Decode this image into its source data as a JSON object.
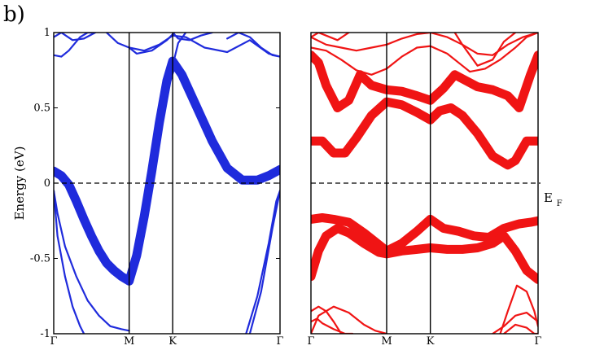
{
  "figure": {
    "panel_label": "b)",
    "fermi_label": {
      "main": "E",
      "sub": "F"
    }
  },
  "chart_data": [
    {
      "type": "line",
      "panel": "left",
      "title": "",
      "ylabel": "Energy (eV)",
      "xlabel": "",
      "k_points": [
        {
          "label": "Γ",
          "x": 0
        },
        {
          "label": "M",
          "x": 1
        },
        {
          "label": "K",
          "x": 1.577
        },
        {
          "label": "Γ",
          "x": 3.0
        }
      ],
      "ylim": [
        -1,
        1
      ],
      "yticks": [
        {
          "value": 1,
          "label": "1"
        },
        {
          "value": 0.5,
          "label": "0.5"
        },
        {
          "value": 0,
          "label": "0"
        },
        {
          "value": -0.5,
          "label": "-0.5"
        },
        {
          "value": -1,
          "label": "-1"
        }
      ],
      "fermi_level": 0,
      "color": "#1f2bdc",
      "series": [
        {
          "weight": "thick",
          "x": [
            0,
            0.1,
            0.2,
            0.3,
            0.4,
            0.5,
            0.6,
            0.7,
            0.8,
            0.9,
            1.0,
            1.1,
            1.2,
            1.3,
            1.4,
            1.5,
            1.577,
            1.7,
            1.9,
            2.1,
            2.3,
            2.5,
            2.7,
            2.85,
            3.0
          ],
          "y": [
            0.08,
            0.05,
            -0.01,
            -0.12,
            -0.24,
            -0.35,
            -0.45,
            -0.53,
            -0.58,
            -0.62,
            -0.65,
            -0.48,
            -0.22,
            0.08,
            0.4,
            0.68,
            0.81,
            0.72,
            0.5,
            0.28,
            0.1,
            0.02,
            0.02,
            0.05,
            0.09
          ]
        },
        {
          "weight": "thin",
          "x": [
            0,
            0.05,
            0.15,
            0.3,
            0.45,
            0.6,
            0.75,
            0.9,
            1.0
          ],
          "y": [
            -0.05,
            -0.2,
            -0.42,
            -0.62,
            -0.78,
            -0.88,
            -0.95,
            -0.97,
            -0.98
          ]
        },
        {
          "weight": "thin",
          "x": [
            0,
            0.05,
            0.15,
            0.25,
            0.35,
            0.4
          ],
          "y": [
            -0.05,
            -0.35,
            -0.62,
            -0.82,
            -0.95,
            -1.0
          ]
        },
        {
          "weight": "thin",
          "x": [
            2.55,
            2.7,
            2.85,
            2.95,
            3.0
          ],
          "y": [
            -1.0,
            -0.75,
            -0.4,
            -0.12,
            -0.05
          ]
        },
        {
          "weight": "thin",
          "x": [
            2.6,
            2.75,
            2.9,
            3.0
          ],
          "y": [
            -1.0,
            -0.72,
            -0.3,
            -0.05
          ]
        },
        {
          "weight": "thin",
          "x": [
            0,
            0.1,
            0.2,
            0.35,
            0.45,
            0.5
          ],
          "y": [
            0.85,
            0.84,
            0.88,
            0.97,
            1.0,
            1.0
          ]
        },
        {
          "weight": "thin",
          "x": [
            0,
            0.1,
            0.25,
            0.4,
            0.55
          ],
          "y": [
            0.97,
            1.0,
            0.95,
            0.96,
            1.0
          ]
        },
        {
          "weight": "thin",
          "x": [
            0.7,
            0.85,
            1.0,
            1.2,
            1.4,
            1.577,
            1.75,
            2.0,
            2.3,
            2.6,
            2.85,
            3.0
          ],
          "y": [
            1.0,
            0.93,
            0.9,
            0.88,
            0.92,
            0.98,
            0.97,
            0.9,
            0.87,
            0.95,
            0.86,
            0.84
          ]
        },
        {
          "weight": "thin",
          "x": [
            1.0,
            1.1,
            1.3,
            1.5,
            1.6
          ],
          "y": [
            0.9,
            0.86,
            0.88,
            0.95,
            1.0
          ]
        },
        {
          "weight": "thin",
          "x": [
            1.577,
            1.65,
            1.8,
            1.95,
            2.1
          ],
          "y": [
            1.0,
            0.96,
            0.95,
            0.98,
            1.0
          ]
        },
        {
          "weight": "thin",
          "x": [
            2.3,
            2.45,
            2.6,
            2.75,
            2.9,
            3.0
          ],
          "y": [
            0.96,
            1.0,
            0.97,
            0.9,
            0.85,
            0.84
          ]
        },
        {
          "weight": "thin",
          "x": [
            1.577,
            1.65,
            1.75
          ],
          "y": [
            0.78,
            0.93,
            1.0
          ]
        }
      ]
    },
    {
      "type": "line",
      "panel": "right",
      "title": "",
      "ylabel": "",
      "xlabel": "",
      "k_points": [
        {
          "label": "Γ",
          "x": 0
        },
        {
          "label": "M",
          "x": 1
        },
        {
          "label": "K",
          "x": 1.577
        },
        {
          "label": "Γ",
          "x": 3.0
        }
      ],
      "ylim": [
        -1,
        1
      ],
      "fermi_level": 0,
      "color": "#f01414",
      "series": [
        {
          "weight": "thick",
          "x": [
            0,
            0.1,
            0.2,
            0.35,
            0.5,
            0.65,
            0.8,
            1.0,
            1.2,
            1.4,
            1.577,
            1.75,
            1.9,
            2.05,
            2.2,
            2.4,
            2.6,
            2.75,
            2.9,
            3.0
          ],
          "y": [
            0.85,
            0.8,
            0.65,
            0.5,
            0.55,
            0.72,
            0.65,
            0.62,
            0.61,
            0.58,
            0.55,
            0.63,
            0.72,
            0.68,
            0.64,
            0.62,
            0.58,
            0.5,
            0.72,
            0.85
          ]
        },
        {
          "weight": "thick",
          "x": [
            0,
            0.15,
            0.3,
            0.45,
            0.6,
            0.8,
            1.0,
            1.2,
            1.4,
            1.577,
            1.7,
            1.85,
            2.0,
            2.2,
            2.4,
            2.6,
            2.7,
            2.85,
            3.0
          ],
          "y": [
            0.28,
            0.28,
            0.2,
            0.2,
            0.3,
            0.45,
            0.54,
            0.52,
            0.47,
            0.42,
            0.48,
            0.5,
            0.45,
            0.33,
            0.18,
            0.12,
            0.15,
            0.28,
            0.28
          ]
        },
        {
          "weight": "thick",
          "x": [
            0,
            0.15,
            0.3,
            0.5,
            0.7,
            0.9,
            1.0,
            1.2,
            1.4,
            1.577,
            1.75,
            1.95,
            2.15,
            2.35,
            2.55,
            2.75,
            2.9,
            3.0
          ],
          "y": [
            -0.24,
            -0.23,
            -0.24,
            -0.26,
            -0.33,
            -0.41,
            -0.45,
            -0.4,
            -0.32,
            -0.24,
            -0.3,
            -0.32,
            -0.35,
            -0.36,
            -0.3,
            -0.27,
            -0.26,
            -0.25
          ]
        },
        {
          "weight": "thick",
          "x": [
            0,
            0.1,
            0.2,
            0.35,
            0.5,
            0.7,
            0.9,
            1.0,
            1.2,
            1.4,
            1.577,
            1.8,
            2.0,
            2.2,
            2.4,
            2.55,
            2.7,
            2.85,
            3.0
          ],
          "y": [
            -0.62,
            -0.45,
            -0.35,
            -0.3,
            -0.33,
            -0.4,
            -0.46,
            -0.47,
            -0.45,
            -0.44,
            -0.43,
            -0.44,
            -0.44,
            -0.43,
            -0.4,
            -0.35,
            -0.45,
            -0.58,
            -0.64
          ]
        },
        {
          "weight": "thin",
          "x": [
            0,
            0.2,
            0.4,
            0.6,
            0.8,
            1.0,
            1.2,
            1.4,
            1.577,
            1.8,
            2.0,
            2.2,
            2.4,
            2.6,
            2.8,
            3.0
          ],
          "y": [
            0.97,
            0.92,
            0.9,
            0.88,
            0.9,
            0.92,
            0.96,
            0.99,
            1.0,
            0.97,
            0.92,
            0.86,
            0.85,
            0.92,
            0.97,
            1.0
          ]
        },
        {
          "weight": "thin",
          "x": [
            0,
            0.2,
            0.4,
            0.6,
            0.8,
            1.0,
            1.2,
            1.4,
            1.577,
            1.8,
            2.0,
            2.1,
            2.3,
            2.5,
            2.7,
            2.85,
            3.0
          ],
          "y": [
            0.9,
            0.88,
            0.82,
            0.75,
            0.72,
            0.76,
            0.84,
            0.9,
            0.91,
            0.86,
            0.78,
            0.74,
            0.76,
            0.82,
            0.9,
            0.97,
            1.0
          ]
        },
        {
          "weight": "thin",
          "x": [
            0,
            0.1,
            0.2,
            0.35,
            0.5
          ],
          "y": [
            0.97,
            1.0,
            0.98,
            0.95,
            1.0
          ]
        },
        {
          "weight": "thin",
          "x": [
            1.9,
            2.0,
            2.2,
            2.4,
            2.55,
            2.7
          ],
          "y": [
            1.0,
            0.92,
            0.78,
            0.82,
            0.94,
            1.0
          ]
        },
        {
          "weight": "thin",
          "x": [
            0,
            0.1,
            0.2,
            0.3,
            0.4
          ],
          "y": [
            -0.85,
            -0.82,
            -0.85,
            -0.92,
            -1.0
          ]
        },
        {
          "weight": "thin",
          "x": [
            0,
            0.1,
            0.3,
            0.5,
            0.7,
            0.85,
            1.0
          ],
          "y": [
            -1.0,
            -0.88,
            -0.82,
            -0.86,
            -0.94,
            -0.98,
            -1.0
          ]
        },
        {
          "weight": "thin",
          "x": [
            0,
            0.08,
            0.15,
            0.3,
            0.45,
            0.55
          ],
          "y": [
            -0.92,
            -0.9,
            -0.93,
            -0.97,
            -1.0,
            -1.0
          ]
        },
        {
          "weight": "thin",
          "x": [
            2.5,
            2.6,
            2.72,
            2.85,
            2.95,
            3.0
          ],
          "y": [
            -1.0,
            -0.85,
            -0.68,
            -0.72,
            -0.85,
            -0.95
          ]
        },
        {
          "weight": "thin",
          "x": [
            2.4,
            2.55,
            2.7,
            2.85,
            2.95,
            3.0
          ],
          "y": [
            -1.0,
            -0.95,
            -0.88,
            -0.86,
            -0.9,
            -0.92
          ]
        },
        {
          "weight": "thin",
          "x": [
            2.55,
            2.7,
            2.85,
            2.95,
            3.0
          ],
          "y": [
            -1.0,
            -0.94,
            -0.96,
            -1.0,
            -1.0
          ]
        }
      ]
    }
  ]
}
